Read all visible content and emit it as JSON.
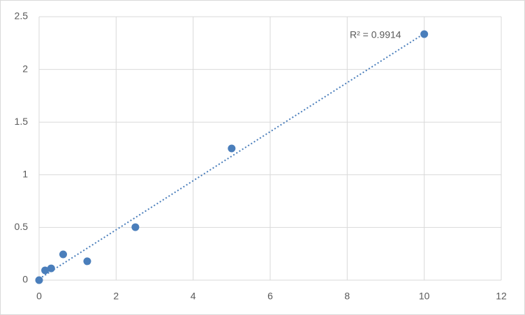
{
  "chart_data": {
    "type": "scatter",
    "x": [
      0,
      0.156,
      0.313,
      0.625,
      1.25,
      2.5,
      5,
      10
    ],
    "values": [
      0,
      0.093,
      0.112,
      0.245,
      0.179,
      0.503,
      1.25,
      2.335
    ],
    "color": "#4a7ebb",
    "xlim": [
      0,
      12
    ],
    "xticks": [
      0,
      2,
      4,
      6,
      8,
      10,
      12
    ],
    "ylim": [
      0,
      2.5
    ],
    "yticks": [
      0,
      0.5,
      1,
      1.5,
      2,
      2.5
    ],
    "grid": true,
    "trendline": "linear",
    "annotation": "R² = 0.9914"
  }
}
